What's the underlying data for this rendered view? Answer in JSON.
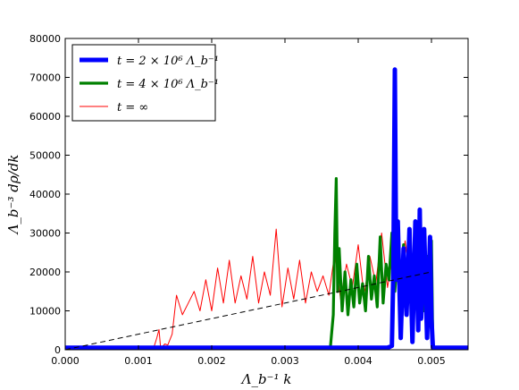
{
  "chart_data": {
    "type": "line",
    "title": "",
    "xlabel": "Λ_b⁻¹ k",
    "ylabel": "Λ_b⁻³ dρ/dk",
    "xlim": [
      0.0,
      0.0055
    ],
    "ylim": [
      0,
      80000
    ],
    "xticks": [
      0.0,
      0.001,
      0.002,
      0.003,
      0.004,
      0.005
    ],
    "xtick_labels": [
      "0.000",
      "0.001",
      "0.002",
      "0.003",
      "0.004",
      "0.005"
    ],
    "yticks": [
      0,
      10000,
      20000,
      30000,
      40000,
      50000,
      60000,
      70000,
      80000
    ],
    "ytick_labels": [
      "0",
      "10000",
      "20000",
      "30000",
      "40000",
      "50000",
      "60000",
      "70000",
      "80000"
    ],
    "grid": false,
    "legend_position": "top-left",
    "legend": [
      "t = 2 × 10⁶ Λ_b⁻¹",
      "t = 4 × 10⁶ Λ_b⁻¹",
      "t = ∞"
    ],
    "series": [
      {
        "name": "t = 2 × 10⁶ Λ_b⁻¹",
        "color": "#0000ff",
        "x": [
          0.0,
          0.0044,
          0.00446,
          0.00448,
          0.0045,
          0.00452,
          0.00454,
          0.00458,
          0.00462,
          0.00466,
          0.0047,
          0.00474,
          0.00478,
          0.00482,
          0.00484,
          0.00486,
          0.0049,
          0.00494,
          0.00498,
          0.005,
          0.00502,
          0.0055
        ],
        "y": [
          500,
          500,
          1000,
          21000,
          72000,
          18000,
          33000,
          3000,
          26000,
          9000,
          31000,
          2000,
          33000,
          5000,
          36000,
          8000,
          31000,
          3000,
          29000,
          8000,
          500,
          500
        ]
      },
      {
        "name": "t = 4 × 10⁶ Λ_b⁻¹",
        "color": "#008000",
        "x": [
          0.0,
          0.00362,
          0.00366,
          0.00368,
          0.0037,
          0.00372,
          0.00374,
          0.00378,
          0.00382,
          0.00386,
          0.0039,
          0.00394,
          0.00398,
          0.00402,
          0.00406,
          0.0041,
          0.00414,
          0.00418,
          0.00422,
          0.00426,
          0.0043,
          0.00434,
          0.00438,
          0.00442,
          0.00446,
          0.0045,
          0.00454,
          0.00458,
          0.00462,
          0.00466,
          0.0047,
          0.00474,
          0.00478,
          0.00482,
          0.00486,
          0.0049,
          0.00494,
          0.00498,
          0.005,
          0.00502,
          0.0055
        ],
        "y": [
          500,
          500,
          9000,
          30000,
          44000,
          15000,
          26000,
          10000,
          20000,
          9000,
          18000,
          11000,
          22000,
          12000,
          17000,
          10000,
          24000,
          13000,
          19000,
          11000,
          29000,
          12000,
          22000,
          18000,
          30000,
          15000,
          26000,
          17000,
          27000,
          15000,
          26000,
          12000,
          31000,
          14000,
          25000,
          10000,
          24000,
          11000,
          28000,
          500,
          500
        ]
      },
      {
        "name": "t = ∞",
        "color": "#ff0000",
        "x": [
          0.0,
          0.0012,
          0.00125,
          0.00128,
          0.0013,
          0.00132,
          0.00136,
          0.0014,
          0.00146,
          0.00152,
          0.0016,
          0.00168,
          0.00176,
          0.00184,
          0.00192,
          0.002,
          0.00208,
          0.00216,
          0.00224,
          0.00232,
          0.0024,
          0.00248,
          0.00256,
          0.00264,
          0.00272,
          0.0028,
          0.00288,
          0.00296,
          0.00304,
          0.00312,
          0.0032,
          0.00328,
          0.00336,
          0.00344,
          0.00352,
          0.0036,
          0.00368,
          0.00376,
          0.00384,
          0.00392,
          0.004,
          0.00408,
          0.00416,
          0.00424,
          0.00432,
          0.0044,
          0.00448,
          0.00456,
          0.00464,
          0.00472,
          0.0048,
          0.00488,
          0.00496,
          0.005,
          0.00502,
          0.0055
        ],
        "y": [
          0,
          0,
          3000,
          5200,
          1000,
          600,
          1500,
          1200,
          4000,
          14000,
          9000,
          12000,
          15000,
          10000,
          18000,
          10000,
          21000,
          12000,
          23000,
          12000,
          19000,
          13000,
          24000,
          12000,
          20000,
          14000,
          31000,
          11000,
          21000,
          13000,
          23000,
          12000,
          20000,
          15000,
          19000,
          14000,
          25000,
          13000,
          22000,
          16000,
          27000,
          14000,
          24000,
          17000,
          30000,
          16000,
          25000,
          15000,
          28000,
          17000,
          29000,
          16000,
          25000,
          18000,
          0,
          0
        ]
      },
      {
        "name": "",
        "color": "#000000",
        "dash": true,
        "x": [
          0.0,
          0.005
        ],
        "y": [
          0,
          20000
        ]
      }
    ]
  }
}
